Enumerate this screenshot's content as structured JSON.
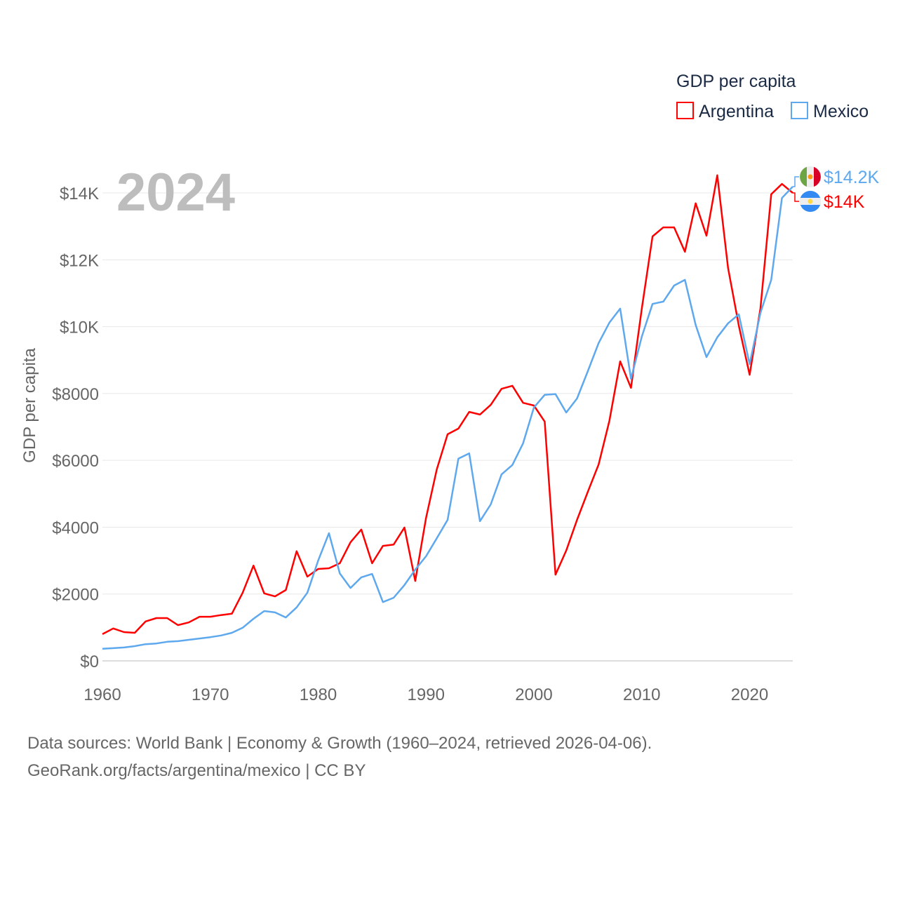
{
  "chart_data": {
    "type": "line",
    "title": "GDP per capita",
    "ylabel": "GDP per capita",
    "xlabel": "",
    "year_label": "2024",
    "xlim": [
      1960,
      2024
    ],
    "ylim": [
      0,
      15000
    ],
    "grid": true,
    "legend_position": "top-right",
    "x_ticks": [
      1960,
      1970,
      1980,
      1990,
      2000,
      2010,
      2020
    ],
    "x_tick_labels": [
      "1960",
      "1970",
      "1980",
      "1990",
      "2000",
      "2010",
      "2020"
    ],
    "y_ticks": [
      0,
      2000,
      4000,
      6000,
      8000,
      10000,
      12000,
      14000
    ],
    "y_tick_labels": [
      "$0",
      "$2000",
      "$4000",
      "$6000",
      "$8000",
      "$10K",
      "$12K",
      "$14K"
    ],
    "x": [
      1960,
      1961,
      1962,
      1963,
      1964,
      1965,
      1966,
      1967,
      1968,
      1969,
      1970,
      1971,
      1972,
      1973,
      1974,
      1975,
      1976,
      1977,
      1978,
      1979,
      1980,
      1981,
      1982,
      1983,
      1984,
      1985,
      1986,
      1987,
      1988,
      1989,
      1990,
      1991,
      1992,
      1993,
      1994,
      1995,
      1996,
      1997,
      1998,
      1999,
      2000,
      2001,
      2002,
      2003,
      2004,
      2005,
      2006,
      2007,
      2008,
      2009,
      2010,
      2011,
      2012,
      2013,
      2014,
      2015,
      2016,
      2017,
      2018,
      2019,
      2020,
      2021,
      2022,
      2023,
      2024
    ],
    "series": [
      {
        "name": "Argentina",
        "color": "#ff0000",
        "end_label": "$14K",
        "flag": "argentina-flag",
        "values": [
          800,
          970,
          860,
          840,
          1180,
          1280,
          1280,
          1070,
          1150,
          1320,
          1320,
          1370,
          1410,
          2040,
          2850,
          2020,
          1930,
          2120,
          3280,
          2520,
          2750,
          2770,
          2920,
          3550,
          3930,
          2920,
          3440,
          3480,
          3990,
          2390,
          4280,
          5730,
          6780,
          6950,
          7450,
          7370,
          7660,
          8140,
          8230,
          7720,
          7640,
          7160,
          2580,
          3300,
          4220,
          5060,
          5880,
          7180,
          8960,
          8170,
          10540,
          12700,
          12970,
          12970,
          12240,
          13690,
          12720,
          14530,
          11750,
          10030,
          8560,
          10540,
          13960,
          14270,
          14000
        ]
      },
      {
        "name": "Mexico",
        "color": "#5ea8ee",
        "end_label": "$14.2K",
        "flag": "mexico-flag",
        "values": [
          360,
          380,
          400,
          440,
          500,
          520,
          570,
          590,
          630,
          670,
          710,
          760,
          840,
          990,
          1260,
          1490,
          1450,
          1300,
          1600,
          2040,
          3000,
          3820,
          2620,
          2180,
          2500,
          2600,
          1760,
          1890,
          2270,
          2730,
          3130,
          3670,
          4220,
          6050,
          6210,
          4180,
          4680,
          5580,
          5860,
          6510,
          7580,
          7960,
          7980,
          7430,
          7850,
          8670,
          9510,
          10120,
          10540,
          8440,
          9700,
          10680,
          10750,
          11230,
          11400,
          10050,
          9090,
          9680,
          10100,
          10370,
          8880,
          10410,
          11400,
          13850,
          14190
        ]
      }
    ]
  },
  "footer": {
    "line1": "Data sources: World Bank | Economy & Growth (1960–2024, retrieved 2026-04-06).",
    "line2": "GeoRank.org/facts/argentina/mexico | CC BY"
  }
}
